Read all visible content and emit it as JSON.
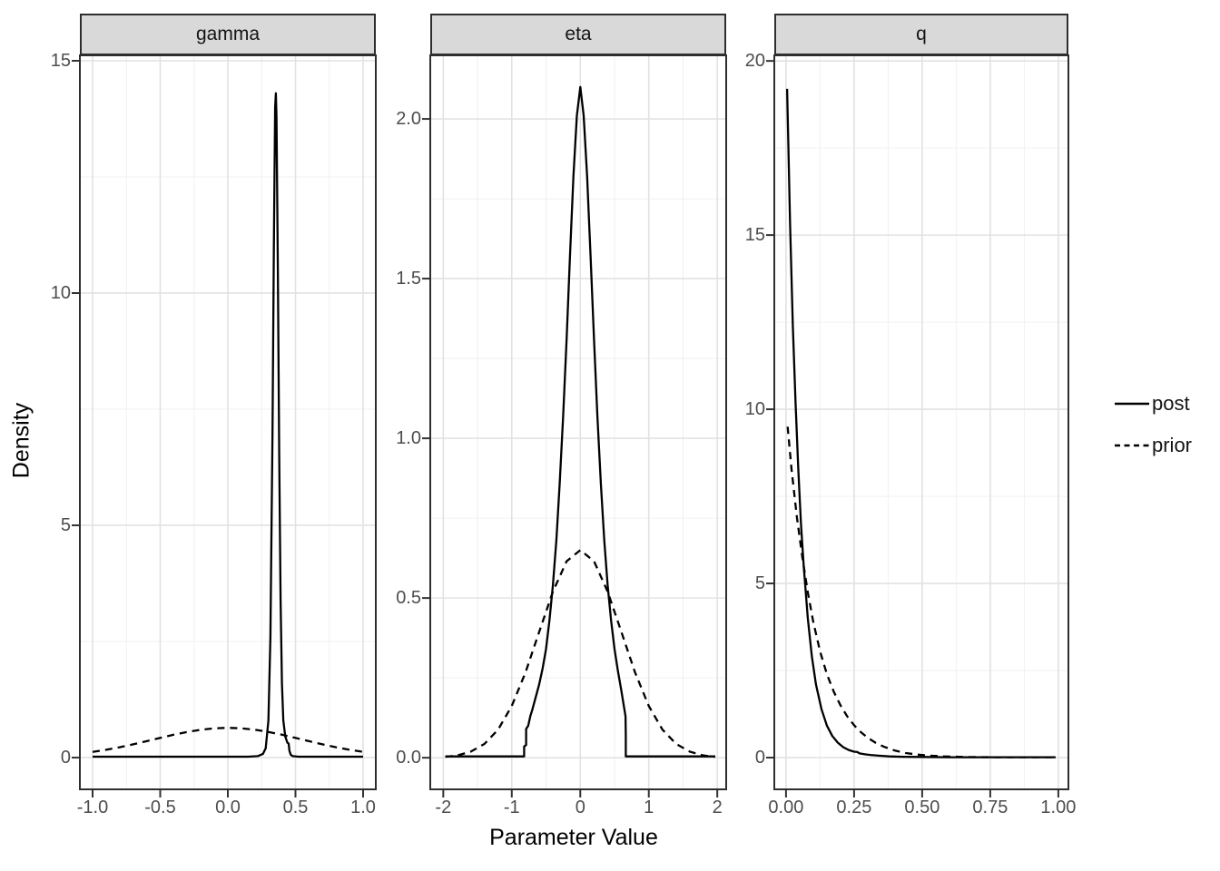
{
  "figure": {
    "x_axis_title": "Parameter Value",
    "y_axis_title": "Density"
  },
  "legend": {
    "items": [
      {
        "label": "post",
        "linetype": "solid"
      },
      {
        "label": "prior",
        "linetype": "dashed"
      }
    ]
  },
  "style": {
    "line_color": "#000000",
    "panel_border_color": "#2e2e2e",
    "strip_fill": "#d9d9d9",
    "grid_major_color": "#e2e2e2",
    "grid_minor_color": "#f0f0f0",
    "axis_text_color": "#4d4d4d",
    "tick_color": "#333333"
  },
  "chart_data": {
    "type": "line",
    "faceted": true,
    "xlabel": "Parameter Value",
    "ylabel": "Density",
    "legend_entries": [
      "post",
      "prior"
    ],
    "legend_position": "right",
    "grid": true,
    "panels": [
      {
        "title": "gamma",
        "x_range": [
          -1.094,
          1.094
        ],
        "y_range": [
          -0.684,
          15.117
        ],
        "x_ticks": {
          "values": [
            -1,
            -0.5,
            0,
            0.5,
            1
          ],
          "labels": [
            "-1.0",
            "-0.5",
            "0.0",
            "0.5",
            "1.0"
          ]
        },
        "y_ticks": {
          "values": [
            0,
            5,
            10,
            15
          ],
          "labels": [
            "0",
            "5",
            "10",
            "15"
          ]
        },
        "x_minor": [
          -0.75,
          -0.25,
          0.25,
          0.75
        ],
        "y_minor": [
          2.5,
          7.5,
          12.5
        ],
        "series": {
          "post": [
            [
              -1.0,
              0.02
            ],
            [
              -0.7,
              0.02
            ],
            [
              -0.4,
              0.02
            ],
            [
              -0.1,
              0.02
            ],
            [
              0.15,
              0.02
            ],
            [
              0.22,
              0.03
            ],
            [
              0.26,
              0.08
            ],
            [
              0.28,
              0.2
            ],
            [
              0.3,
              0.8
            ],
            [
              0.315,
              2.6
            ],
            [
              0.33,
              7.0
            ],
            [
              0.34,
              11.0
            ],
            [
              0.35,
              14.0
            ],
            [
              0.355,
              14.3
            ],
            [
              0.36,
              13.8
            ],
            [
              0.37,
              10.5
            ],
            [
              0.38,
              6.5
            ],
            [
              0.39,
              3.4
            ],
            [
              0.4,
              1.6
            ],
            [
              0.41,
              0.8
            ],
            [
              0.425,
              0.45
            ],
            [
              0.44,
              0.32
            ],
            [
              0.45,
              0.3
            ],
            [
              0.455,
              0.15
            ],
            [
              0.465,
              0.06
            ],
            [
              0.48,
              0.03
            ],
            [
              0.52,
              0.02
            ],
            [
              0.7,
              0.02
            ],
            [
              1.0,
              0.02
            ]
          ],
          "prior": [
            [
              -1,
              0.123
            ],
            [
              -0.9,
              0.168
            ],
            [
              -0.8,
              0.222
            ],
            [
              -0.7,
              0.285
            ],
            [
              -0.6,
              0.353
            ],
            [
              -0.5,
              0.424
            ],
            [
              -0.4,
              0.491
            ],
            [
              -0.3,
              0.552
            ],
            [
              -0.2,
              0.599
            ],
            [
              -0.1,
              0.63
            ],
            [
              0,
              0.64
            ],
            [
              0.1,
              0.63
            ],
            [
              0.2,
              0.599
            ],
            [
              0.3,
              0.552
            ],
            [
              0.4,
              0.491
            ],
            [
              0.5,
              0.424
            ],
            [
              0.6,
              0.353
            ],
            [
              0.7,
              0.285
            ],
            [
              0.8,
              0.222
            ],
            [
              0.9,
              0.168
            ],
            [
              1,
              0.123
            ]
          ]
        }
      },
      {
        "title": "eta",
        "x_range": [
          -2.19,
          2.13
        ],
        "y_range": [
          -0.099,
          2.199
        ],
        "x_ticks": {
          "values": [
            -2,
            -1,
            0,
            1,
            2
          ],
          "labels": [
            "-2",
            "-1",
            "0",
            "1",
            "2"
          ]
        },
        "y_ticks": {
          "values": [
            0,
            0.5,
            1,
            1.5,
            2
          ],
          "labels": [
            "0.0",
            "0.5",
            "1.0",
            "1.5",
            "2.0"
          ]
        },
        "x_minor": [
          -1.5,
          -0.5,
          0.5,
          1.5
        ],
        "y_minor": [
          0.25,
          0.75,
          1.25,
          1.75
        ],
        "series": {
          "post": [
            [
              -1.97,
              0.004
            ],
            [
              -1.5,
              0.004
            ],
            [
              -1.0,
              0.004
            ],
            [
              -0.82,
              0.004
            ],
            [
              -0.82,
              0.035
            ],
            [
              -0.79,
              0.04
            ],
            [
              -0.79,
              0.09
            ],
            [
              -0.76,
              0.1
            ],
            [
              -0.73,
              0.13
            ],
            [
              -0.7,
              0.15
            ],
            [
              -0.65,
              0.19
            ],
            [
              -0.6,
              0.23
            ],
            [
              -0.55,
              0.28
            ],
            [
              -0.5,
              0.34
            ],
            [
              -0.45,
              0.43
            ],
            [
              -0.4,
              0.54
            ],
            [
              -0.35,
              0.68
            ],
            [
              -0.3,
              0.86
            ],
            [
              -0.25,
              1.07
            ],
            [
              -0.2,
              1.31
            ],
            [
              -0.15,
              1.57
            ],
            [
              -0.1,
              1.82
            ],
            [
              -0.05,
              2.01
            ],
            [
              0,
              2.1
            ],
            [
              0.05,
              2.01
            ],
            [
              0.1,
              1.82
            ],
            [
              0.15,
              1.57
            ],
            [
              0.2,
              1.31
            ],
            [
              0.25,
              1.07
            ],
            [
              0.3,
              0.86
            ],
            [
              0.35,
              0.68
            ],
            [
              0.4,
              0.54
            ],
            [
              0.45,
              0.43
            ],
            [
              0.5,
              0.34
            ],
            [
              0.55,
              0.27
            ],
            [
              0.6,
              0.21
            ],
            [
              0.63,
              0.17
            ],
            [
              0.66,
              0.13
            ],
            [
              0.665,
              0.07
            ],
            [
              0.665,
              0.004
            ],
            [
              1.0,
              0.004
            ],
            [
              1.5,
              0.004
            ],
            [
              1.97,
              0.004
            ]
          ],
          "prior": [
            [
              -1.97,
              0.003
            ],
            [
              -1.8,
              0.007
            ],
            [
              -1.6,
              0.019
            ],
            [
              -1.4,
              0.043
            ],
            [
              -1.2,
              0.088
            ],
            [
              -1.0,
              0.162
            ],
            [
              -0.8,
              0.267
            ],
            [
              -0.6,
              0.394
            ],
            [
              -0.4,
              0.52
            ],
            [
              -0.2,
              0.615
            ],
            [
              0,
              0.65
            ],
            [
              0.2,
              0.615
            ],
            [
              0.4,
              0.52
            ],
            [
              0.6,
              0.394
            ],
            [
              0.8,
              0.267
            ],
            [
              1.0,
              0.162
            ],
            [
              1.2,
              0.088
            ],
            [
              1.4,
              0.043
            ],
            [
              1.6,
              0.019
            ],
            [
              1.8,
              0.007
            ],
            [
              1.97,
              0.003
            ]
          ]
        }
      },
      {
        "title": "q",
        "x_range": [
          -0.043,
          1.037
        ],
        "y_range": [
          -0.911,
          20.16
        ],
        "x_ticks": {
          "values": [
            0,
            0.25,
            0.5,
            0.75,
            1
          ],
          "labels": [
            "0.00",
            "0.25",
            "0.50",
            "0.75",
            "1.00"
          ]
        },
        "y_ticks": {
          "values": [
            0,
            5,
            10,
            15,
            20
          ],
          "labels": [
            "0",
            "5",
            "10",
            "15",
            "20"
          ]
        },
        "x_minor": [
          0.125,
          0.375,
          0.625,
          0.875
        ],
        "y_minor": [
          2.5,
          7.5,
          12.5,
          17.5
        ],
        "series": {
          "post": [
            [
              0.004,
              19.2
            ],
            [
              0.008,
              17.8
            ],
            [
              0.015,
              15.3
            ],
            [
              0.025,
              12.4
            ],
            [
              0.035,
              10.2
            ],
            [
              0.045,
              8.3
            ],
            [
              0.055,
              6.7
            ],
            [
              0.065,
              5.5
            ],
            [
              0.08,
              4.0
            ],
            [
              0.095,
              2.9
            ],
            [
              0.11,
              2.1
            ],
            [
              0.13,
              1.4
            ],
            [
              0.15,
              0.92
            ],
            [
              0.17,
              0.62
            ],
            [
              0.19,
              0.43
            ],
            [
              0.21,
              0.3
            ],
            [
              0.23,
              0.22
            ],
            [
              0.25,
              0.17
            ],
            [
              0.262,
              0.16
            ],
            [
              0.27,
              0.12
            ],
            [
              0.29,
              0.095
            ],
            [
              0.31,
              0.075
            ],
            [
              0.34,
              0.055
            ],
            [
              0.38,
              0.035
            ],
            [
              0.43,
              0.025
            ],
            [
              0.5,
              0.018
            ],
            [
              0.6,
              0.012
            ],
            [
              0.75,
              0.01
            ],
            [
              0.99,
              0.01
            ]
          ],
          "prior": [
            [
              0.006,
              9.5
            ],
            [
              0.02,
              8.3
            ],
            [
              0.04,
              6.9
            ],
            [
              0.06,
              5.75
            ],
            [
              0.08,
              4.75
            ],
            [
              0.1,
              3.9
            ],
            [
              0.125,
              3.05
            ],
            [
              0.15,
              2.4
            ],
            [
              0.175,
              1.9
            ],
            [
              0.2,
              1.5
            ],
            [
              0.225,
              1.18
            ],
            [
              0.25,
              0.93
            ],
            [
              0.275,
              0.73
            ],
            [
              0.3,
              0.57
            ],
            [
              0.33,
              0.42
            ],
            [
              0.36,
              0.31
            ],
            [
              0.4,
              0.2
            ],
            [
              0.44,
              0.13
            ],
            [
              0.48,
              0.09
            ],
            [
              0.52,
              0.06
            ],
            [
              0.58,
              0.035
            ],
            [
              0.65,
              0.02
            ],
            [
              0.75,
              0.012
            ],
            [
              0.85,
              0.01
            ],
            [
              0.99,
              0.01
            ]
          ]
        }
      }
    ]
  }
}
